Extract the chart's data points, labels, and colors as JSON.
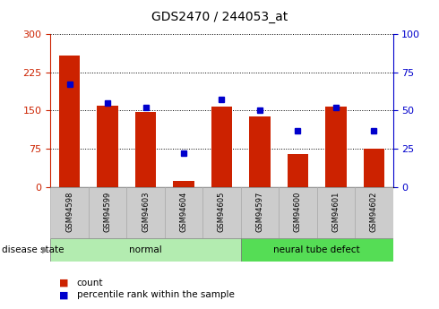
{
  "title": "GDS2470 / 244053_at",
  "categories": [
    "GSM94598",
    "GSM94599",
    "GSM94603",
    "GSM94604",
    "GSM94605",
    "GSM94597",
    "GSM94600",
    "GSM94601",
    "GSM94602"
  ],
  "counts": [
    258,
    160,
    147,
    12,
    157,
    138,
    65,
    157,
    75
  ],
  "percentiles": [
    67,
    55,
    52,
    22,
    57,
    50,
    37,
    52,
    37
  ],
  "groups": [
    {
      "label": "normal",
      "start": 0,
      "end": 5,
      "color": "#b3ecb0"
    },
    {
      "label": "neural tube defect",
      "start": 5,
      "end": 9,
      "color": "#55dd55"
    }
  ],
  "left_axis_color": "#cc2200",
  "right_axis_color": "#0000cc",
  "bar_color": "#cc2200",
  "dot_color": "#0000cc",
  "ylim_left": [
    0,
    300
  ],
  "ylim_right": [
    0,
    100
  ],
  "yticks_left": [
    0,
    75,
    150,
    225,
    300
  ],
  "yticks_right": [
    0,
    25,
    50,
    75,
    100
  ],
  "tick_area_color": "#cccccc",
  "legend_count_label": "count",
  "legend_pct_label": "percentile rank within the sample",
  "disease_state_label": "disease state",
  "bar_width": 0.55
}
